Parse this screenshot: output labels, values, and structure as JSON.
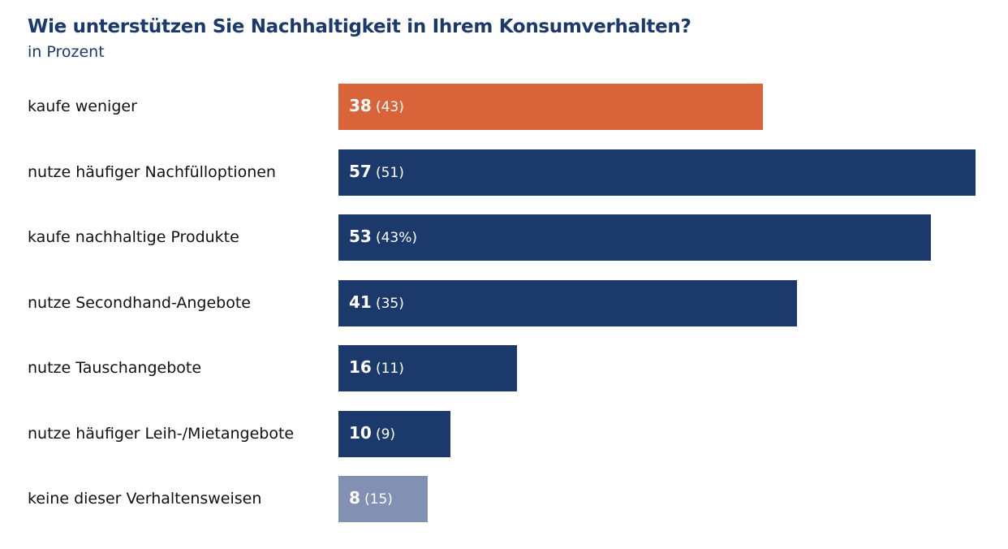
{
  "chart_data": {
    "type": "bar",
    "orientation": "horizontal",
    "title": "Wie unterstützen Sie Nachhaltigkeit in Ihrem Konsumverhalten?",
    "subtitle": "in Prozent",
    "categories": [
      "kaufe weniger",
      "nutze häufiger Nachfülloptionen",
      "kaufe nachhaltige Produkte",
      "nutze Secondhand-Angebote",
      "nutze Tauschangebote",
      "nutze häufiger Leih-/Mietangebote",
      "keine dieser Verhaltensweisen"
    ],
    "values": [
      38,
      57,
      53,
      41,
      16,
      10,
      8
    ],
    "value_labels": [
      "38",
      "57",
      "53",
      "41",
      "16",
      "10",
      "8"
    ],
    "secondary_labels": [
      "(43)",
      "(51)",
      "(43%)",
      "(35)",
      "(11)",
      "(9)",
      "(15)"
    ],
    "colors": [
      "#d9643a",
      "#1b3a6b",
      "#1b3a6b",
      "#1b3a6b",
      "#1b3a6b",
      "#1b3a6b",
      "#8190b3"
    ],
    "grid": false,
    "legend": "none"
  }
}
